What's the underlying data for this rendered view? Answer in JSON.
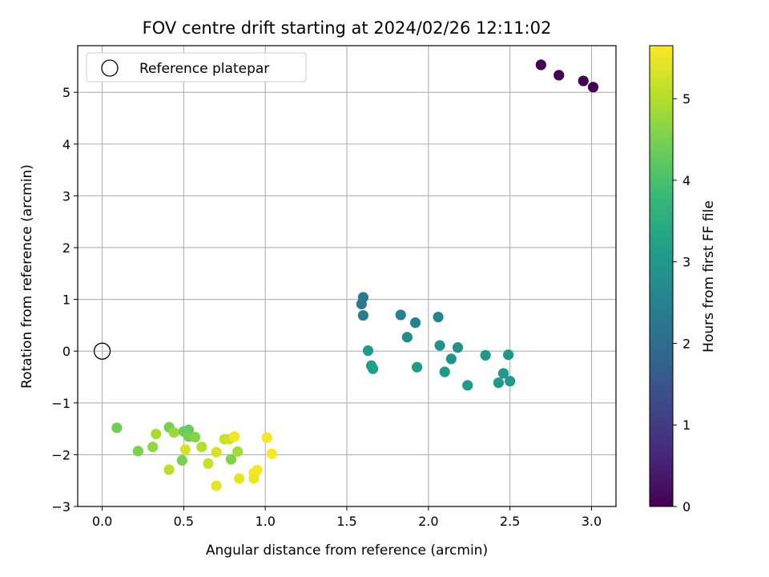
{
  "chart_data": {
    "type": "scatter",
    "title": "FOV centre drift starting at 2024/02/26 12:11:02",
    "xlabel": "Angular distance from reference (arcmin)",
    "ylabel": "Rotation from reference (arcmin)",
    "xlim": [
      -0.15,
      3.15
    ],
    "ylim": [
      -3.0,
      5.9
    ],
    "xticks": [
      0.0,
      0.5,
      1.0,
      1.5,
      2.0,
      2.5,
      3.0
    ],
    "xtick_labels": [
      "0.0",
      "0.5",
      "1.0",
      "1.5",
      "2.0",
      "2.5",
      "3.0"
    ],
    "yticks": [
      -3,
      -2,
      -1,
      0,
      1,
      2,
      3,
      4,
      5
    ],
    "ytick_labels": [
      "−3",
      "−2",
      "−1",
      "0",
      "1",
      "2",
      "3",
      "4",
      "5"
    ],
    "grid": true,
    "legend": {
      "placement": "upper-left",
      "entries": [
        "Reference platepar"
      ]
    },
    "reference_point": {
      "name": "Reference platepar",
      "x": 0.0,
      "y": 0.0,
      "marker": "open-circle"
    },
    "colorbar": {
      "label": "Hours from first FF file",
      "colormap": "viridis",
      "range": [
        0,
        5.65
      ],
      "ticks": [
        0,
        1,
        2,
        3,
        4,
        5
      ],
      "tick_labels": [
        "0",
        "1",
        "2",
        "3",
        "4",
        "5"
      ]
    },
    "colormap_stops": [
      "#440154",
      "#482878",
      "#3e4989",
      "#31688e",
      "#26828e",
      "#1f9e89",
      "#35b779",
      "#6ece58",
      "#b5de2b",
      "#fde725"
    ],
    "series": [
      {
        "points": [
          {
            "x": 2.69,
            "y": 5.53,
            "t": 0.0
          },
          {
            "x": 2.8,
            "y": 5.33,
            "t": 0.0
          },
          {
            "x": 2.95,
            "y": 5.22,
            "t": 0.0
          },
          {
            "x": 3.01,
            "y": 5.1,
            "t": 0.0
          },
          {
            "x": 1.6,
            "y": 1.04,
            "t": 2.3
          },
          {
            "x": 1.59,
            "y": 0.91,
            "t": 2.3
          },
          {
            "x": 1.6,
            "y": 0.69,
            "t": 2.35
          },
          {
            "x": 1.83,
            "y": 0.7,
            "t": 2.5
          },
          {
            "x": 1.92,
            "y": 0.55,
            "t": 2.5
          },
          {
            "x": 2.06,
            "y": 0.66,
            "t": 2.55
          },
          {
            "x": 1.87,
            "y": 0.27,
            "t": 2.7
          },
          {
            "x": 2.07,
            "y": 0.11,
            "t": 2.85
          },
          {
            "x": 2.18,
            "y": 0.07,
            "t": 2.85
          },
          {
            "x": 1.63,
            "y": 0.01,
            "t": 3.1
          },
          {
            "x": 2.14,
            "y": -0.15,
            "t": 2.9
          },
          {
            "x": 2.35,
            "y": -0.08,
            "t": 2.95
          },
          {
            "x": 2.49,
            "y": -0.07,
            "t": 2.95
          },
          {
            "x": 1.65,
            "y": -0.28,
            "t": 3.15
          },
          {
            "x": 1.66,
            "y": -0.34,
            "t": 3.2
          },
          {
            "x": 1.93,
            "y": -0.31,
            "t": 3.1
          },
          {
            "x": 2.1,
            "y": -0.4,
            "t": 3.05
          },
          {
            "x": 2.46,
            "y": -0.43,
            "t": 3.0
          },
          {
            "x": 2.43,
            "y": -0.61,
            "t": 3.0
          },
          {
            "x": 2.5,
            "y": -0.58,
            "t": 3.0
          },
          {
            "x": 2.24,
            "y": -0.66,
            "t": 3.05
          },
          {
            "x": 0.09,
            "y": -1.48,
            "t": 4.4
          },
          {
            "x": 0.22,
            "y": -1.93,
            "t": 4.5
          },
          {
            "x": 0.31,
            "y": -1.85,
            "t": 4.7
          },
          {
            "x": 0.33,
            "y": -1.6,
            "t": 4.9
          },
          {
            "x": 0.41,
            "y": -1.47,
            "t": 4.45
          },
          {
            "x": 0.44,
            "y": -1.57,
            "t": 4.8
          },
          {
            "x": 0.41,
            "y": -2.29,
            "t": 5.1
          },
          {
            "x": 0.49,
            "y": -2.11,
            "t": 4.5
          },
          {
            "x": 0.5,
            "y": -1.55,
            "t": 4.35
          },
          {
            "x": 0.53,
            "y": -1.52,
            "t": 4.3
          },
          {
            "x": 0.53,
            "y": -1.65,
            "t": 4.45
          },
          {
            "x": 0.57,
            "y": -1.66,
            "t": 4.6
          },
          {
            "x": 0.51,
            "y": -1.9,
            "t": 5.3
          },
          {
            "x": 0.61,
            "y": -1.85,
            "t": 5.0
          },
          {
            "x": 0.65,
            "y": -2.17,
            "t": 5.2
          },
          {
            "x": 0.7,
            "y": -1.95,
            "t": 5.3
          },
          {
            "x": 0.7,
            "y": -2.6,
            "t": 5.45
          },
          {
            "x": 0.75,
            "y": -1.7,
            "t": 5.15
          },
          {
            "x": 0.78,
            "y": -1.7,
            "t": 5.2
          },
          {
            "x": 0.81,
            "y": -1.65,
            "t": 5.55
          },
          {
            "x": 0.79,
            "y": -2.09,
            "t": 4.55
          },
          {
            "x": 0.83,
            "y": -1.94,
            "t": 4.9
          },
          {
            "x": 0.84,
            "y": -2.46,
            "t": 5.45
          },
          {
            "x": 0.93,
            "y": -2.35,
            "t": 5.6
          },
          {
            "x": 0.93,
            "y": -2.46,
            "t": 5.5
          },
          {
            "x": 0.95,
            "y": -2.3,
            "t": 5.6
          },
          {
            "x": 1.01,
            "y": -1.67,
            "t": 5.6
          },
          {
            "x": 1.04,
            "y": -1.98,
            "t": 5.6
          }
        ]
      }
    ]
  }
}
